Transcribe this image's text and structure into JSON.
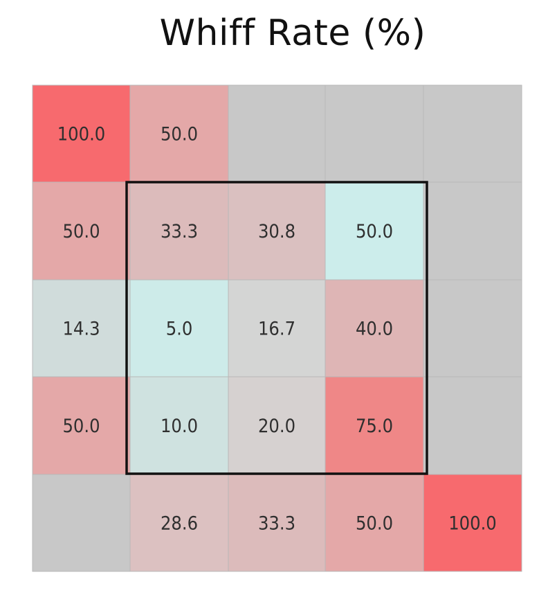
{
  "chart_data": {
    "type": "heatmap",
    "title": "Whiff Rate (%)",
    "rows": 5,
    "cols": 5,
    "values": [
      [
        100.0,
        50.0,
        null,
        null,
        null
      ],
      [
        50.0,
        33.3,
        30.8,
        50.0,
        null
      ],
      [
        14.3,
        5.0,
        16.7,
        40.0,
        null
      ],
      [
        50.0,
        10.0,
        20.0,
        75.0,
        null
      ],
      [
        null,
        28.6,
        33.3,
        50.0,
        100.0
      ]
    ],
    "labels": [
      [
        "100.0",
        "50.0",
        "",
        "",
        ""
      ],
      [
        "50.0",
        "33.3",
        "30.8",
        "50.0",
        ""
      ],
      [
        "14.3",
        "5.0",
        "16.7",
        "40.0",
        ""
      ],
      [
        "50.0",
        "10.0",
        "20.0",
        "75.0",
        ""
      ],
      [
        "",
        "28.6",
        "33.3",
        "50.0",
        "100.0"
      ]
    ],
    "colors": [
      [
        "#f76a6e",
        "#e4a8a8",
        "#c8c8c8",
        "#c8c8c8",
        "#c8c8c8"
      ],
      [
        "#e4a8a8",
        "#dcbbbb",
        "#dac0c0",
        "#ccedeb",
        "#c8c8c8"
      ],
      [
        "#d0dcdb",
        "#cdebe9",
        "#d4d5d4",
        "#deb5b5",
        "#c8c8c8"
      ],
      [
        "#e4a8a8",
        "#cfe2e0",
        "#d6d1d0",
        "#ef8787",
        "#c8c8c8"
      ],
      [
        "#c8c8c8",
        "#dcc1c1",
        "#dcbbbb",
        "#e4a8a8",
        "#f76a6e"
      ]
    ],
    "no_data_color": "#c8c8c8",
    "strike_zone": {
      "row_start": 1,
      "row_end": 3,
      "col_start": 1,
      "col_end": 3
    }
  }
}
